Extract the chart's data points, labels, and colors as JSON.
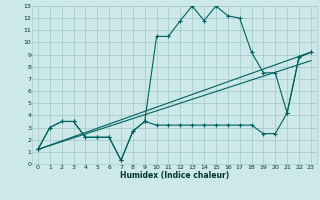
{
  "xlabel": "Humidex (Indice chaleur)",
  "bg_color": "#cce8e8",
  "grid_color": "#aacccc",
  "line_color": "#006060",
  "xlim": [
    -0.5,
    23.5
  ],
  "ylim": [
    0,
    13
  ],
  "line1_x": [
    0,
    1,
    2,
    3,
    4,
    5,
    6,
    7,
    8,
    9,
    10,
    11,
    12,
    13,
    14,
    15,
    16,
    17,
    18,
    19,
    20,
    21,
    22,
    23
  ],
  "line1_y": [
    1.2,
    3.0,
    3.5,
    3.5,
    2.2,
    2.2,
    2.2,
    0.3,
    2.7,
    3.5,
    10.5,
    10.5,
    11.8,
    13.0,
    11.8,
    13.0,
    12.2,
    12.0,
    9.2,
    7.5,
    7.5,
    4.2,
    8.8,
    9.2
  ],
  "line2_x": [
    0,
    1,
    2,
    3,
    4,
    5,
    6,
    7,
    8,
    9,
    10,
    11,
    12,
    13,
    14,
    15,
    16,
    17,
    18,
    19,
    20,
    21,
    22,
    23
  ],
  "line2_y": [
    1.2,
    3.0,
    3.5,
    3.5,
    2.2,
    2.2,
    2.2,
    0.3,
    2.7,
    3.5,
    3.2,
    3.2,
    3.2,
    3.2,
    3.2,
    3.2,
    3.2,
    3.2,
    3.2,
    2.5,
    2.5,
    4.2,
    8.8,
    9.2
  ],
  "line3_x": [
    0,
    23
  ],
  "line3_y": [
    1.2,
    9.2
  ],
  "line4_x": [
    0,
    23
  ],
  "line4_y": [
    1.2,
    8.5
  ]
}
